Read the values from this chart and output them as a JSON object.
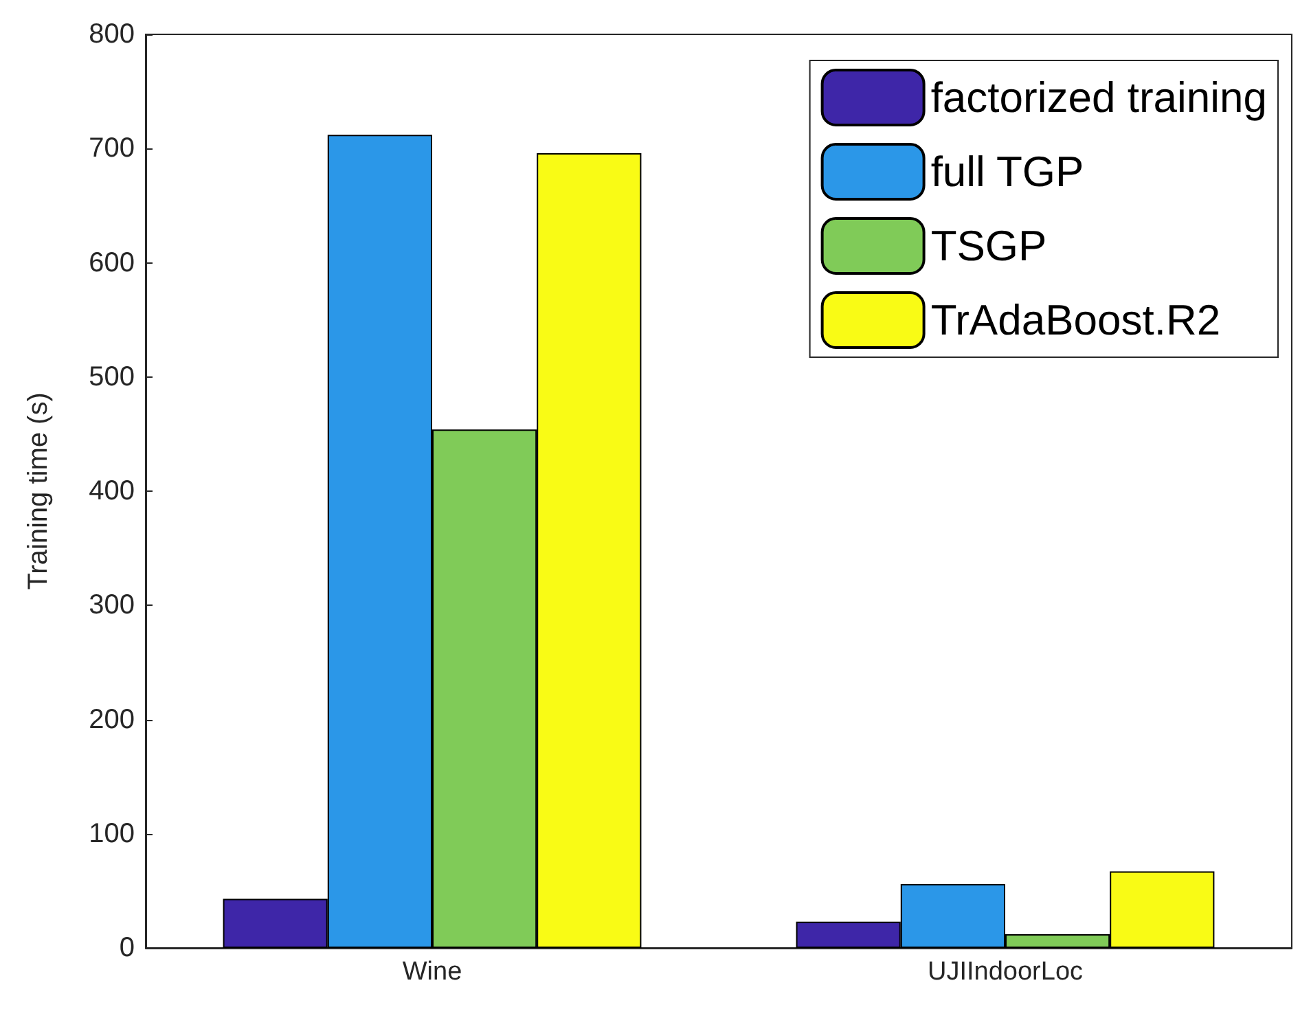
{
  "chart_data": {
    "type": "bar",
    "ylabel": "Training time (s)",
    "categories": [
      "Wine",
      "UJIIndoorLoc"
    ],
    "series": [
      {
        "name": "factorized training",
        "color": "#3e26a8",
        "values": [
          43,
          23
        ]
      },
      {
        "name": "full TGP",
        "color": "#2b97e8",
        "values": [
          712,
          56
        ]
      },
      {
        "name": "TSGP",
        "color": "#80cb58",
        "values": [
          454,
          12
        ]
      },
      {
        "name": "TrAdaBoost.R2",
        "color": "#f9fb15",
        "values": [
          696,
          67
        ]
      }
    ],
    "ylim": [
      0,
      800
    ],
    "yticks": [
      0,
      100,
      200,
      300,
      400,
      500,
      600,
      700,
      800
    ],
    "legend": "top right"
  }
}
